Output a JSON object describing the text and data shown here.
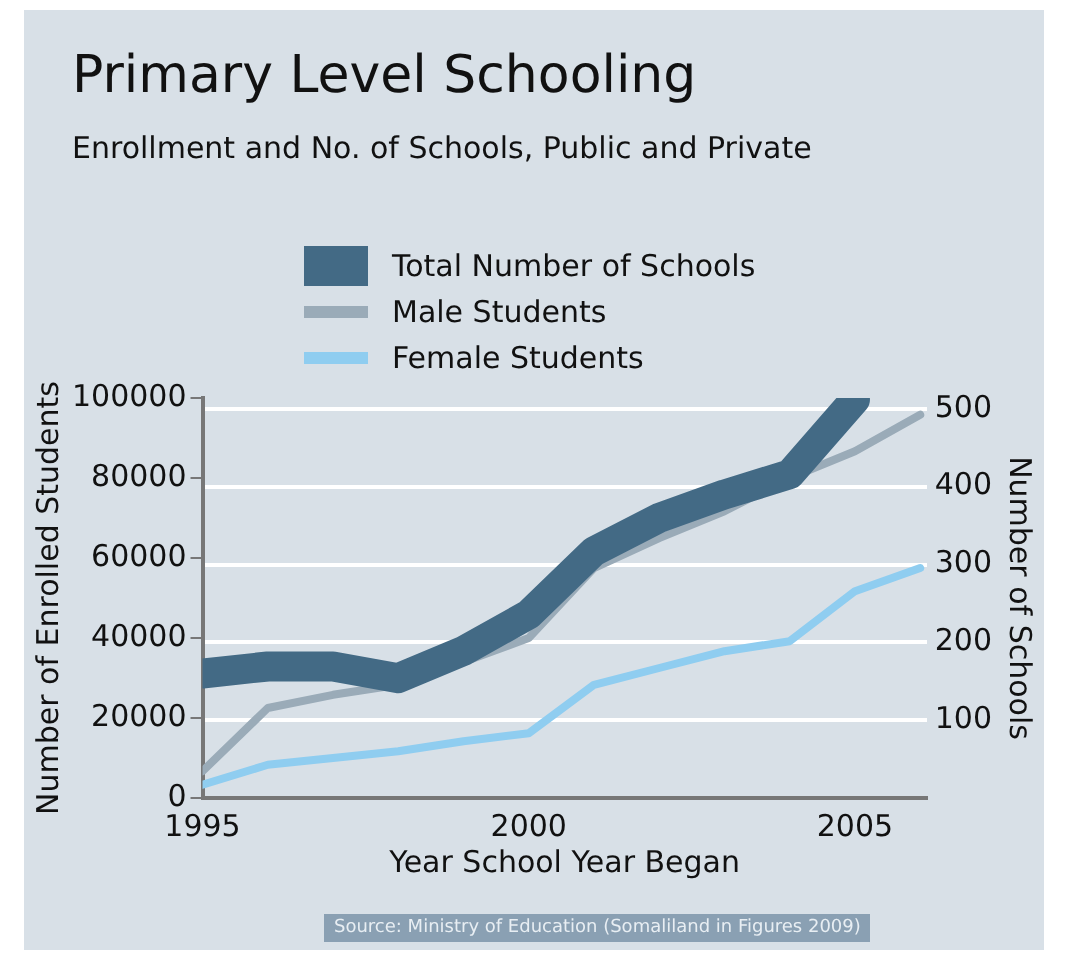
{
  "chart_data": {
    "type": "line",
    "title": "Primary Level Schooling",
    "subtitle": "Enrollment and No. of Schools, Public and Private",
    "xlabel": "Year School Year Began",
    "ylabel": "Number of Enrolled Students",
    "y2label": "Number of Schools",
    "x": [
      1995,
      1996,
      1997,
      1998,
      1999,
      2000,
      2001,
      2002,
      2003,
      2004,
      2005,
      2006
    ],
    "series": [
      {
        "name": "Total Number of Schools",
        "color": "#436a85",
        "axis": "y2",
        "x": [
          1995,
          1996,
          1997,
          1998,
          1999,
          2000,
          2001,
          2002,
          2003,
          2004,
          2005
        ],
        "values": [
          160,
          169,
          169,
          154,
          189,
          236,
          317,
          360,
          390,
          416,
          512
        ]
      },
      {
        "name": "Male Students",
        "color": "#9aabb8",
        "values": [
          6700,
          22500,
          25800,
          28300,
          34000,
          40000,
          57500,
          65000,
          71700,
          80000,
          86700,
          95800
        ]
      },
      {
        "name": "Female Students",
        "color": "#8fcdf0",
        "values": [
          3300,
          8300,
          10000,
          11700,
          14200,
          16200,
          28300,
          32500,
          36700,
          39200,
          51700,
          57500
        ]
      }
    ],
    "xlim": [
      1995,
      2006.1
    ],
    "xticks": [
      1995,
      2000,
      2005
    ],
    "ylim": [
      0,
      100000
    ],
    "yticks": [
      0,
      20000,
      40000,
      60000,
      80000,
      100000
    ],
    "y2lim": [
      0,
      514
    ],
    "y2ticks": [
      100,
      200,
      300,
      400,
      500
    ],
    "grid": "y",
    "legend": "top",
    "marker": "none",
    "line_style": "solid",
    "annotations": [
      "Source: Ministry of Education (Somaliland in Figures 2009)"
    ]
  }
}
